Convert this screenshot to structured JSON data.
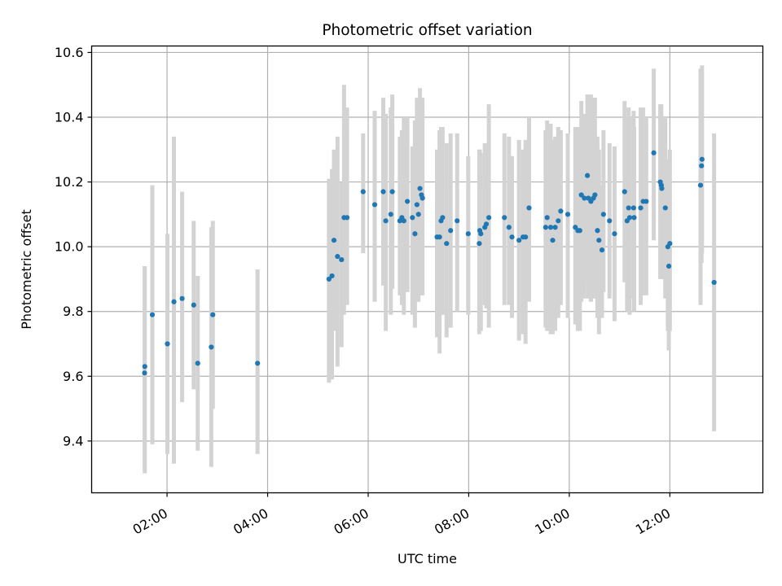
{
  "chart_data": {
    "type": "scatter",
    "title": "Photometric offset variation",
    "xlabel": "UTC time",
    "ylabel": "Photometric offset",
    "grid": true,
    "x_unit": "hours UTC",
    "xlim": [
      0.5,
      13.85
    ],
    "ylim": [
      9.24,
      10.62
    ],
    "x_ticks": [
      {
        "value": 2,
        "label": "02:00"
      },
      {
        "value": 4,
        "label": "04:00"
      },
      {
        "value": 6,
        "label": "06:00"
      },
      {
        "value": 8,
        "label": "08:00"
      },
      {
        "value": 10,
        "label": "10:00"
      },
      {
        "value": 12,
        "label": "12:00"
      }
    ],
    "y_ticks": [
      {
        "value": 9.4,
        "label": "9.4"
      },
      {
        "value": 9.6,
        "label": "9.6"
      },
      {
        "value": 9.8,
        "label": "9.8"
      },
      {
        "value": 10.0,
        "label": "10.0"
      },
      {
        "value": 10.2,
        "label": "10.2"
      },
      {
        "value": 10.4,
        "label": "10.4"
      },
      {
        "value": 10.6,
        "label": "10.6"
      }
    ],
    "colors": {
      "points": "#1f77b4",
      "error_bars": "#d3d3d3"
    },
    "series": [
      {
        "name": "offset",
        "columns": [
          "time_h",
          "offset",
          "lower",
          "upper"
        ],
        "points": [
          [
            1.553,
            9.61,
            9.31,
            9.94
          ],
          [
            1.557,
            9.63,
            9.3,
            9.94
          ],
          [
            1.707,
            9.79,
            9.39,
            10.19
          ],
          [
            2.007,
            9.7,
            9.36,
            10.04
          ],
          [
            2.137,
            9.83,
            9.33,
            10.34
          ],
          [
            2.3,
            9.84,
            9.52,
            10.17
          ],
          [
            2.53,
            9.82,
            9.56,
            10.08
          ],
          [
            2.61,
            9.64,
            9.37,
            9.91
          ],
          [
            2.88,
            9.69,
            9.32,
            10.06
          ],
          [
            2.91,
            9.79,
            9.5,
            10.08
          ],
          [
            3.8,
            9.64,
            9.36,
            9.93
          ],
          [
            5.22,
            9.9,
            9.58,
            10.21
          ],
          [
            5.28,
            9.91,
            9.59,
            10.24
          ],
          [
            5.32,
            10.02,
            9.74,
            10.3
          ],
          [
            5.39,
            9.97,
            9.63,
            10.34
          ],
          [
            5.47,
            9.96,
            9.69,
            10.2
          ],
          [
            5.52,
            10.09,
            9.79,
            10.5
          ],
          [
            5.58,
            10.09,
            9.82,
            10.43
          ],
          [
            5.9,
            10.17,
            9.98,
            10.35
          ],
          [
            6.13,
            10.13,
            9.83,
            10.42
          ],
          [
            6.3,
            10.17,
            9.88,
            10.46
          ],
          [
            6.35,
            10.08,
            9.74,
            10.41
          ],
          [
            6.45,
            10.1,
            9.79,
            10.43
          ],
          [
            6.48,
            10.17,
            9.87,
            10.47
          ],
          [
            6.63,
            10.08,
            9.85,
            10.34
          ],
          [
            6.67,
            10.09,
            9.82,
            10.36
          ],
          [
            6.71,
            10.08,
            9.79,
            10.4
          ],
          [
            6.78,
            10.14,
            9.86,
            10.4
          ],
          [
            6.88,
            10.09,
            9.79,
            10.31
          ],
          [
            6.93,
            10.04,
            9.75,
            10.39
          ],
          [
            6.97,
            10.13,
            9.83,
            10.46
          ],
          [
            7.0,
            10.1,
            9.83,
            10.37
          ],
          [
            7.03,
            10.18,
            9.88,
            10.49
          ],
          [
            7.06,
            10.16,
            9.85,
            10.45
          ],
          [
            7.08,
            10.15,
            9.85,
            10.46
          ],
          [
            7.37,
            10.03,
            9.72,
            10.3
          ],
          [
            7.42,
            10.03,
            9.67,
            10.36
          ],
          [
            7.45,
            10.08,
            9.79,
            10.37
          ],
          [
            7.48,
            10.09,
            9.79,
            10.37
          ],
          [
            7.56,
            10.01,
            9.72,
            10.32
          ],
          [
            7.64,
            10.05,
            9.75,
            10.35
          ],
          [
            7.77,
            10.08,
            9.8,
            10.35
          ],
          [
            7.99,
            10.04,
            9.79,
            10.28
          ],
          [
            8.21,
            10.01,
            9.73,
            10.3
          ],
          [
            8.22,
            10.05,
            9.75,
            10.3
          ],
          [
            8.24,
            10.04,
            9.74,
            10.29
          ],
          [
            8.32,
            10.06,
            9.82,
            10.32
          ],
          [
            8.35,
            10.07,
            9.81,
            10.31
          ],
          [
            8.4,
            10.09,
            9.75,
            10.44
          ],
          [
            8.71,
            10.09,
            9.82,
            10.35
          ],
          [
            8.8,
            10.06,
            9.82,
            10.34
          ],
          [
            8.86,
            10.03,
            9.78,
            10.28
          ],
          [
            9.0,
            10.02,
            9.71,
            10.33
          ],
          [
            9.08,
            10.03,
            9.73,
            10.3
          ],
          [
            9.13,
            10.03,
            9.7,
            10.33
          ],
          [
            9.2,
            10.12,
            9.83,
            10.4
          ],
          [
            9.53,
            10.06,
            9.75,
            10.36
          ],
          [
            9.56,
            10.09,
            9.74,
            10.39
          ],
          [
            9.63,
            10.06,
            9.73,
            10.38
          ],
          [
            9.67,
            10.02,
            9.73,
            10.33
          ],
          [
            9.72,
            10.06,
            9.74,
            10.34
          ],
          [
            9.78,
            10.08,
            9.78,
            10.37
          ],
          [
            9.83,
            10.11,
            9.82,
            10.36
          ],
          [
            9.97,
            10.1,
            9.78,
            10.35
          ],
          [
            10.12,
            10.06,
            9.76,
            10.37
          ],
          [
            10.17,
            10.05,
            9.74,
            10.37
          ],
          [
            10.21,
            10.05,
            9.74,
            10.34
          ],
          [
            10.24,
            10.16,
            9.83,
            10.45
          ],
          [
            10.3,
            10.15,
            9.84,
            10.41
          ],
          [
            10.36,
            10.22,
            9.89,
            10.47
          ],
          [
            10.38,
            10.15,
            9.84,
            10.45
          ],
          [
            10.43,
            10.14,
            9.83,
            10.47
          ],
          [
            10.48,
            10.15,
            9.84,
            10.46
          ],
          [
            10.51,
            10.16,
            9.85,
            10.46
          ],
          [
            10.56,
            10.05,
            9.78,
            10.34
          ],
          [
            10.59,
            10.02,
            9.73,
            10.3
          ],
          [
            10.65,
            9.99,
            9.78,
            10.19
          ],
          [
            10.68,
            10.1,
            9.86,
            10.36
          ],
          [
            10.8,
            10.08,
            9.84,
            10.32
          ],
          [
            10.9,
            10.04,
            9.77,
            10.31
          ],
          [
            11.1,
            10.17,
            9.89,
            10.45
          ],
          [
            11.15,
            10.08,
            9.8,
            10.4
          ],
          [
            11.18,
            10.12,
            9.86,
            10.43
          ],
          [
            11.2,
            10.09,
            9.79,
            10.4
          ],
          [
            11.28,
            10.12,
            9.84,
            10.42
          ],
          [
            11.29,
            10.09,
            9.8,
            10.37
          ],
          [
            11.42,
            10.12,
            9.82,
            10.43
          ],
          [
            11.47,
            10.14,
            9.85,
            10.43
          ],
          [
            11.53,
            10.14,
            9.85,
            10.4
          ],
          [
            11.68,
            10.29,
            10.02,
            10.55
          ],
          [
            11.81,
            10.2,
            9.9,
            10.44
          ],
          [
            11.83,
            10.19,
            9.93,
            10.44
          ],
          [
            11.84,
            10.18,
            9.9,
            10.39
          ],
          [
            11.91,
            10.12,
            9.84,
            10.4
          ],
          [
            11.96,
            10.0,
            9.74,
            10.27
          ],
          [
            11.98,
            9.94,
            9.68,
            10.19
          ],
          [
            12.0,
            10.01,
            9.74,
            10.3
          ],
          [
            12.61,
            10.19,
            9.82,
            10.55
          ],
          [
            12.63,
            10.25,
            9.95,
            10.55
          ],
          [
            12.64,
            10.27,
            9.98,
            10.56
          ],
          [
            12.88,
            9.89,
            9.43,
            10.35
          ]
        ]
      }
    ]
  }
}
